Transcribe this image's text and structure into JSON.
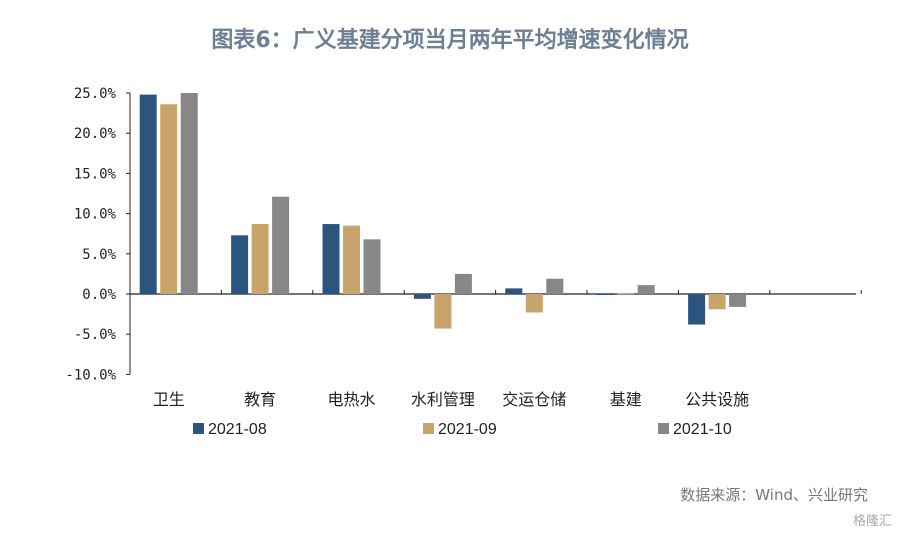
{
  "title": "图表6：广义基建分项当月两年平均增速变化情况",
  "source": "数据来源：Wind、兴业研究",
  "watermark": "格隆汇",
  "chart_data": {
    "type": "bar",
    "title": "图表6：广义基建分项当月两年平均增速变化情况",
    "categories": [
      "卫生",
      "教育",
      "电热水",
      "水利管理",
      "交运仓储",
      "基建",
      "公共设施"
    ],
    "series": [
      {
        "name": "2021-08",
        "color": "#2b557f",
        "values": [
          24.8,
          7.3,
          8.7,
          -0.6,
          0.7,
          -0.1,
          -3.8
        ]
      },
      {
        "name": "2021-09",
        "color": "#c8a36c",
        "values": [
          23.6,
          8.7,
          8.5,
          -4.3,
          -2.3,
          0.1,
          -1.9
        ]
      },
      {
        "name": "2021-10",
        "color": "#878787",
        "values": [
          25.0,
          12.1,
          6.8,
          2.5,
          1.9,
          1.1,
          -1.6
        ]
      }
    ],
    "yticks": [
      "25.0%",
      "20.0%",
      "15.0%",
      "10.0%",
      "5.0%",
      "0.0%",
      "-5.0%",
      "-10.0%"
    ],
    "ylim": [
      -10,
      25
    ],
    "legend": "bottom",
    "grid": false
  }
}
